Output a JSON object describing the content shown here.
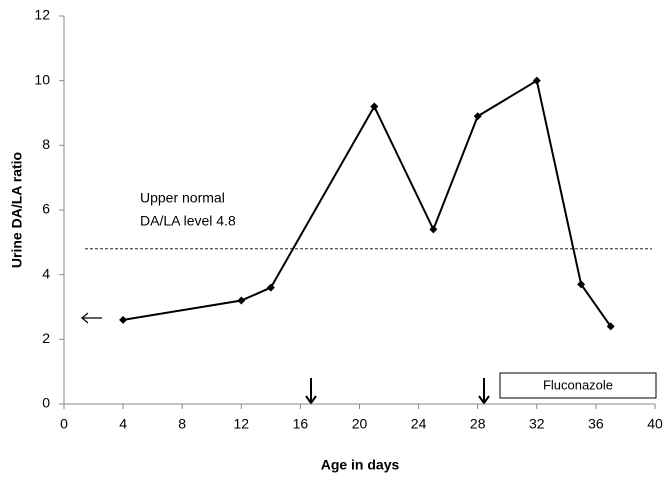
{
  "chart_data": {
    "type": "line",
    "xlabel": "Age in days",
    "ylabel": "Urine DA/LA ratio",
    "x": [
      4,
      12,
      14,
      21,
      25,
      28,
      32,
      35,
      37
    ],
    "values": [
      2.6,
      3.2,
      3.6,
      9.2,
      5.4,
      8.9,
      10.0,
      3.7,
      2.4
    ],
    "color": "#000000",
    "xlim": [
      0,
      40
    ],
    "xticks": [
      0,
      4,
      8,
      12,
      16,
      20,
      24,
      28,
      32,
      36,
      40
    ],
    "ylim": [
      0,
      12
    ],
    "yticks": [
      0,
      2,
      4,
      6,
      8,
      10,
      12
    ],
    "grid": false,
    "reference_line": 4.8,
    "annotations": [
      "Upper normal",
      "DA/LA level 4.8"
    ],
    "treatment_label": "Fluconazole"
  }
}
